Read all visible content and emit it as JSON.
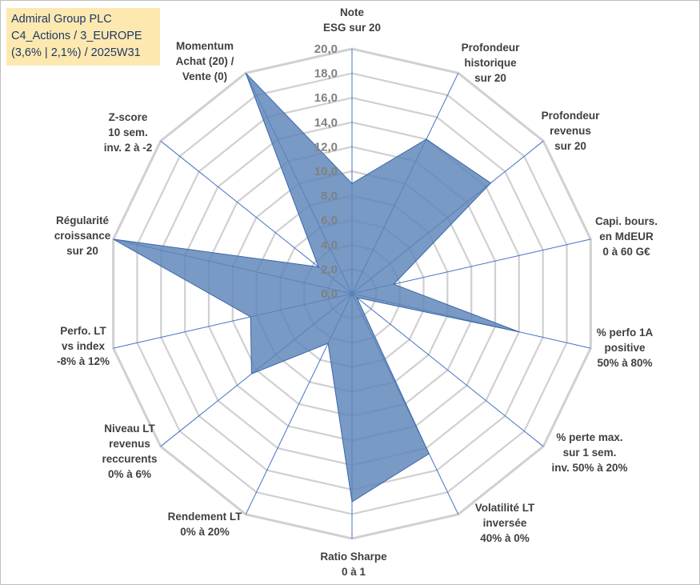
{
  "header": {
    "lines": [
      "Admiral Group PLC",
      "C4_Actions / 3_EUROPE",
      "(3,6% | 2,1%) / 2025W31"
    ]
  },
  "chart_data": {
    "type": "radar",
    "rmin": 0,
    "rmax": 20,
    "ticks": [
      "0,0",
      "2,0",
      "4,0",
      "6,0",
      "8,0",
      "10,0",
      "12,0",
      "14,0",
      "16,0",
      "18,0",
      "20,0"
    ],
    "grid": true,
    "colors": {
      "fill": "#5b84b8",
      "stroke": "#3a66a8",
      "grid": "#d0d0d0",
      "spoke": "#4472c4"
    },
    "axes": [
      {
        "label": [
          "Note",
          "ESG sur 20"
        ],
        "value": 9.0
      },
      {
        "label": [
          "Profondeur",
          "historique",
          "sur 20"
        ],
        "value": 14.0
      },
      {
        "label": [
          "Profondeur",
          "revenus",
          "sur 20"
        ],
        "value": 14.5
      },
      {
        "label": [
          "Capi. bours.",
          "en MdEUR",
          "0 à 60 G€"
        ],
        "value": 3.5
      },
      {
        "label": [
          "% perfo 1A",
          "positive",
          "50% à 80%"
        ],
        "value": 14.0
      },
      {
        "label": [
          "% perte max.",
          "sur 1 sem.",
          "inv. 50% à 20%"
        ],
        "value": 0.5
      },
      {
        "label": [
          "Volatilité LT",
          "inversée",
          "40% à 0%"
        ],
        "value": 14.5
      },
      {
        "label": [
          "Ratio Sharpe",
          "0 à 1"
        ],
        "value": 17.0
      },
      {
        "label": [
          "Rendement LT",
          "0% à 20%"
        ],
        "value": 4.5
      },
      {
        "label": [
          "Niveau LT",
          "revenus",
          "reccurents",
          "0% à 6%"
        ],
        "value": 10.5
      },
      {
        "label": [
          "Perfo. LT",
          "vs index",
          "-8% à 12%"
        ],
        "value": 8.5
      },
      {
        "label": [
          "Régularité",
          "croissance",
          "sur 20"
        ],
        "value": 20.0
      },
      {
        "label": [
          "Z-score",
          "10 sem.",
          "inv. 2 à -2"
        ],
        "value": 3.5
      },
      {
        "label": [
          "Momentum",
          "Achat (20) /",
          "Vente (0)"
        ],
        "value": 20.0
      }
    ]
  }
}
